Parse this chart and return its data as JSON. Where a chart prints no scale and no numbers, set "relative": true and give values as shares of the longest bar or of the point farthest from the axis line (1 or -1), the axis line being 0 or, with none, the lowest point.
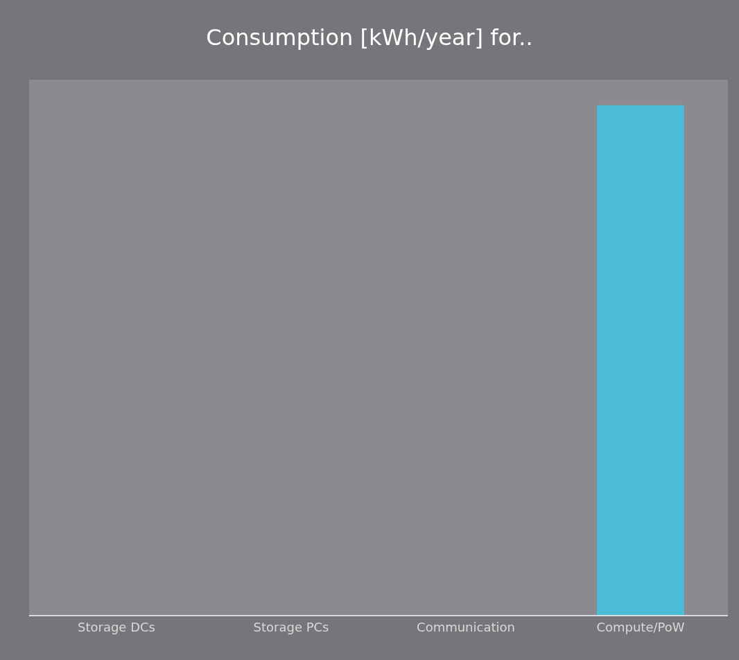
{
  "chart_data": {
    "type": "bar",
    "title": "Consumption [kWh/year] for..",
    "categories": [
      "Storage DCs",
      "Storage PCs",
      "Communication",
      "Compute/PoW"
    ],
    "values": [
      0,
      0,
      0,
      1
    ],
    "color": "#4bbcd6",
    "relative": true,
    "grid": false
  }
}
